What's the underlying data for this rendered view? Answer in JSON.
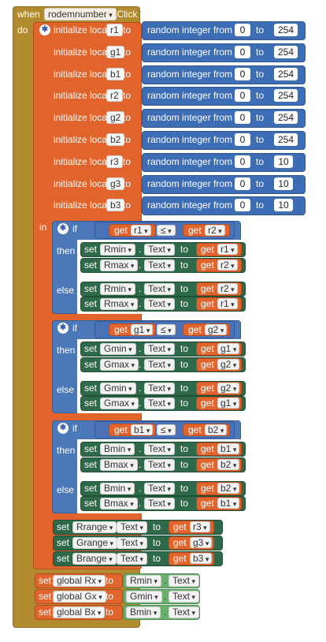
{
  "event": {
    "when": "when",
    "component": "rodemnumber",
    "click": ".Click",
    "do": "do"
  },
  "init": {
    "label": "initialize local",
    "to": "to",
    "random_label": "random integer from",
    "vars": [
      {
        "name": "r1",
        "from": "0",
        "to": "254"
      },
      {
        "name": "g1",
        "from": "0",
        "to": "254"
      },
      {
        "name": "b1",
        "from": "0",
        "to": "254"
      },
      {
        "name": "r2",
        "from": "0",
        "to": "254"
      },
      {
        "name": "g2",
        "from": "0",
        "to": "254"
      },
      {
        "name": "b2",
        "from": "0",
        "to": "254"
      },
      {
        "name": "r3",
        "from": "0",
        "to": "10"
      },
      {
        "name": "g3",
        "from": "0",
        "to": "10"
      },
      {
        "name": "b3",
        "from": "0",
        "to": "10"
      }
    ],
    "in": "in"
  },
  "if_blocks": [
    {
      "if": "if",
      "a": "r1",
      "op": "≤",
      "b": "r2",
      "then": "then",
      "else": "else",
      "then_sets": [
        {
          "comp": "Rmin",
          "prop": "Text",
          "var": "r1"
        },
        {
          "comp": "Rmax",
          "prop": "Text",
          "var": "r2"
        }
      ],
      "else_sets": [
        {
          "comp": "Rmin",
          "prop": "Text",
          "var": "r2"
        },
        {
          "comp": "Rmax",
          "prop": "Text",
          "var": "r1"
        }
      ]
    },
    {
      "if": "if",
      "a": "g1",
      "op": "≤",
      "b": "g2",
      "then": "then",
      "else": "else",
      "then_sets": [
        {
          "comp": "Gmin",
          "prop": "Text",
          "var": "g1"
        },
        {
          "comp": "Gmax",
          "prop": "Text",
          "var": "g2"
        }
      ],
      "else_sets": [
        {
          "comp": "Gmin",
          "prop": "Text",
          "var": "g2"
        },
        {
          "comp": "Gmax",
          "prop": "Text",
          "var": "g1"
        }
      ]
    },
    {
      "if": "if",
      "a": "b1",
      "op": "≤",
      "b": "b2",
      "then": "then",
      "else": "else",
      "then_sets": [
        {
          "comp": "Bmin",
          "prop": "Text",
          "var": "b1"
        },
        {
          "comp": "Bmax",
          "prop": "Text",
          "var": "b2"
        }
      ],
      "else_sets": [
        {
          "comp": "Bmin",
          "prop": "Text",
          "var": "b2"
        },
        {
          "comp": "Bmax",
          "prop": "Text",
          "var": "b1"
        }
      ]
    }
  ],
  "range_sets": [
    {
      "comp": "Rrange",
      "prop": "Text",
      "var": "r3"
    },
    {
      "comp": "Grange",
      "prop": "Text",
      "var": "g3"
    },
    {
      "comp": "Brange",
      "prop": "Text",
      "var": "b3"
    }
  ],
  "globals": [
    {
      "name": "global Rx",
      "comp": "Rmin",
      "prop": "Text"
    },
    {
      "name": "global Gx",
      "comp": "Gmin",
      "prop": "Text"
    },
    {
      "name": "global Bx",
      "comp": "Bmin",
      "prop": "Text"
    }
  ],
  "words": {
    "set": "set",
    "get": "get",
    "to": "to",
    "dot": "."
  },
  "colors": {
    "event": "#b28b2e",
    "local": "#e0642b",
    "math": "#3d6eb5",
    "control": "#4a78b8",
    "set": "#2e6a4a",
    "text_get": "#6ab06d"
  }
}
